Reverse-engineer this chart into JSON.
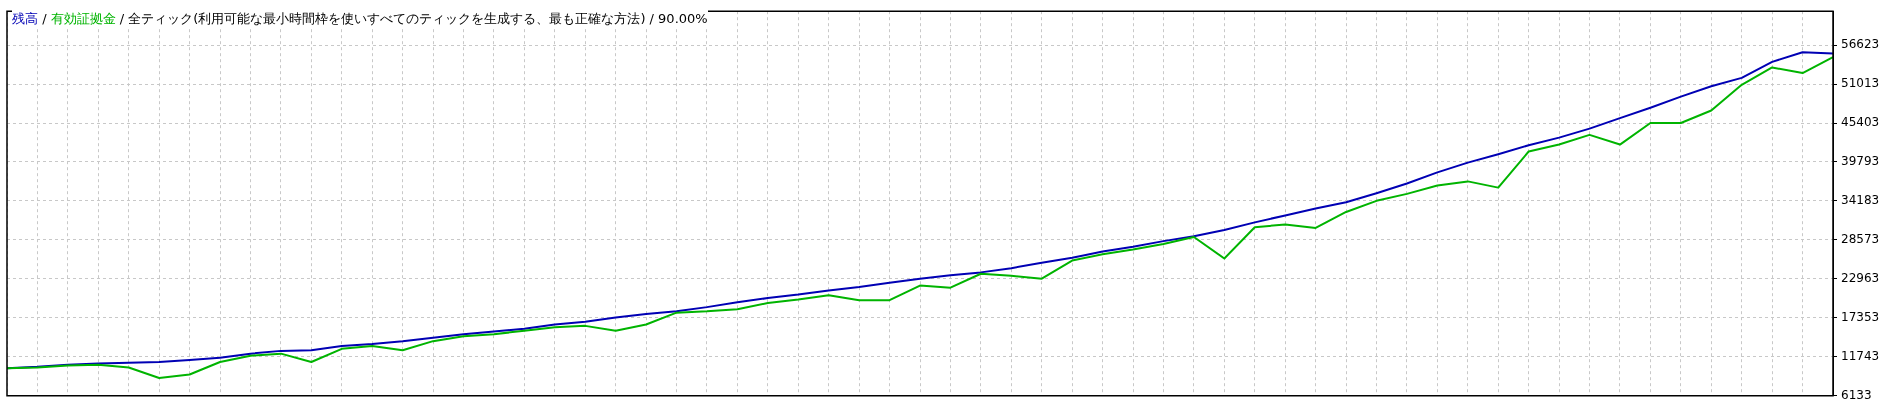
{
  "chart_data": {
    "type": "line",
    "title": "全ティック(利用可能な最小時間枠を使いすべてのティックを生成する、最も正確な方法) / 90.00%",
    "annotations": [
      "/",
      "/"
    ],
    "categories": [
      null,
      null,
      null,
      null,
      null,
      null,
      null,
      null,
      null,
      null,
      null,
      null,
      null,
      null,
      null,
      null,
      null,
      null,
      null,
      null,
      null,
      null,
      null,
      null,
      null,
      null,
      null,
      null,
      null,
      null,
      null,
      null,
      null,
      null,
      null,
      null,
      null,
      null,
      null,
      null,
      null,
      null,
      null,
      null,
      null,
      null,
      null,
      null,
      null,
      null,
      null,
      null,
      null,
      null,
      null,
      null,
      null,
      null,
      null,
      null,
      null
    ],
    "series": [
      {
        "name": "残高",
        "color": "#0000b4",
        "values": [
          10100,
          10300,
          10600,
          10800,
          10900,
          11000,
          11300,
          11600,
          12200,
          12600,
          12700,
          13300,
          13600,
          14000,
          14500,
          15000,
          15400,
          15800,
          16400,
          16800,
          17400,
          17900,
          18300,
          18900,
          19600,
          20200,
          20700,
          21300,
          21800,
          22400,
          23000,
          23500,
          23900,
          24500,
          25300,
          26000,
          26900,
          27600,
          28400,
          29100,
          30000,
          31100,
          32100,
          33100,
          34000,
          35300,
          36700,
          38300,
          39700,
          40900,
          42200,
          43300,
          44600,
          46100,
          47600,
          49200,
          50700,
          51900,
          54200,
          55600,
          55400
        ]
      },
      {
        "name": "有効証拠金",
        "color": "#00b400",
        "values": [
          10100,
          10200,
          10500,
          10600,
          10200,
          8700,
          9200,
          11000,
          11900,
          12200,
          11000,
          12900,
          13300,
          12700,
          14000,
          14700,
          15000,
          15500,
          16000,
          16200,
          15500,
          16400,
          18100,
          18300,
          18600,
          19500,
          20000,
          20600,
          19900,
          19900,
          22000,
          21700,
          23700,
          23400,
          23000,
          25600,
          26500,
          27200,
          28000,
          29000,
          25900,
          30400,
          30800,
          30300,
          32600,
          34200,
          35200,
          36400,
          37000,
          36100,
          41300,
          42300,
          43700,
          42300,
          45400,
          45400,
          47200,
          50900,
          53400,
          52600,
          54900
        ]
      }
    ],
    "ylim": [
      6133,
      61500
    ],
    "yticks": [
      6133,
      11743,
      17353,
      22963,
      28573,
      34183,
      39793,
      45403,
      51013,
      56623
    ],
    "grid": true,
    "legend": "top left",
    "tick_labels": "y",
    "marker": "none",
    "line_style": "solid"
  }
}
